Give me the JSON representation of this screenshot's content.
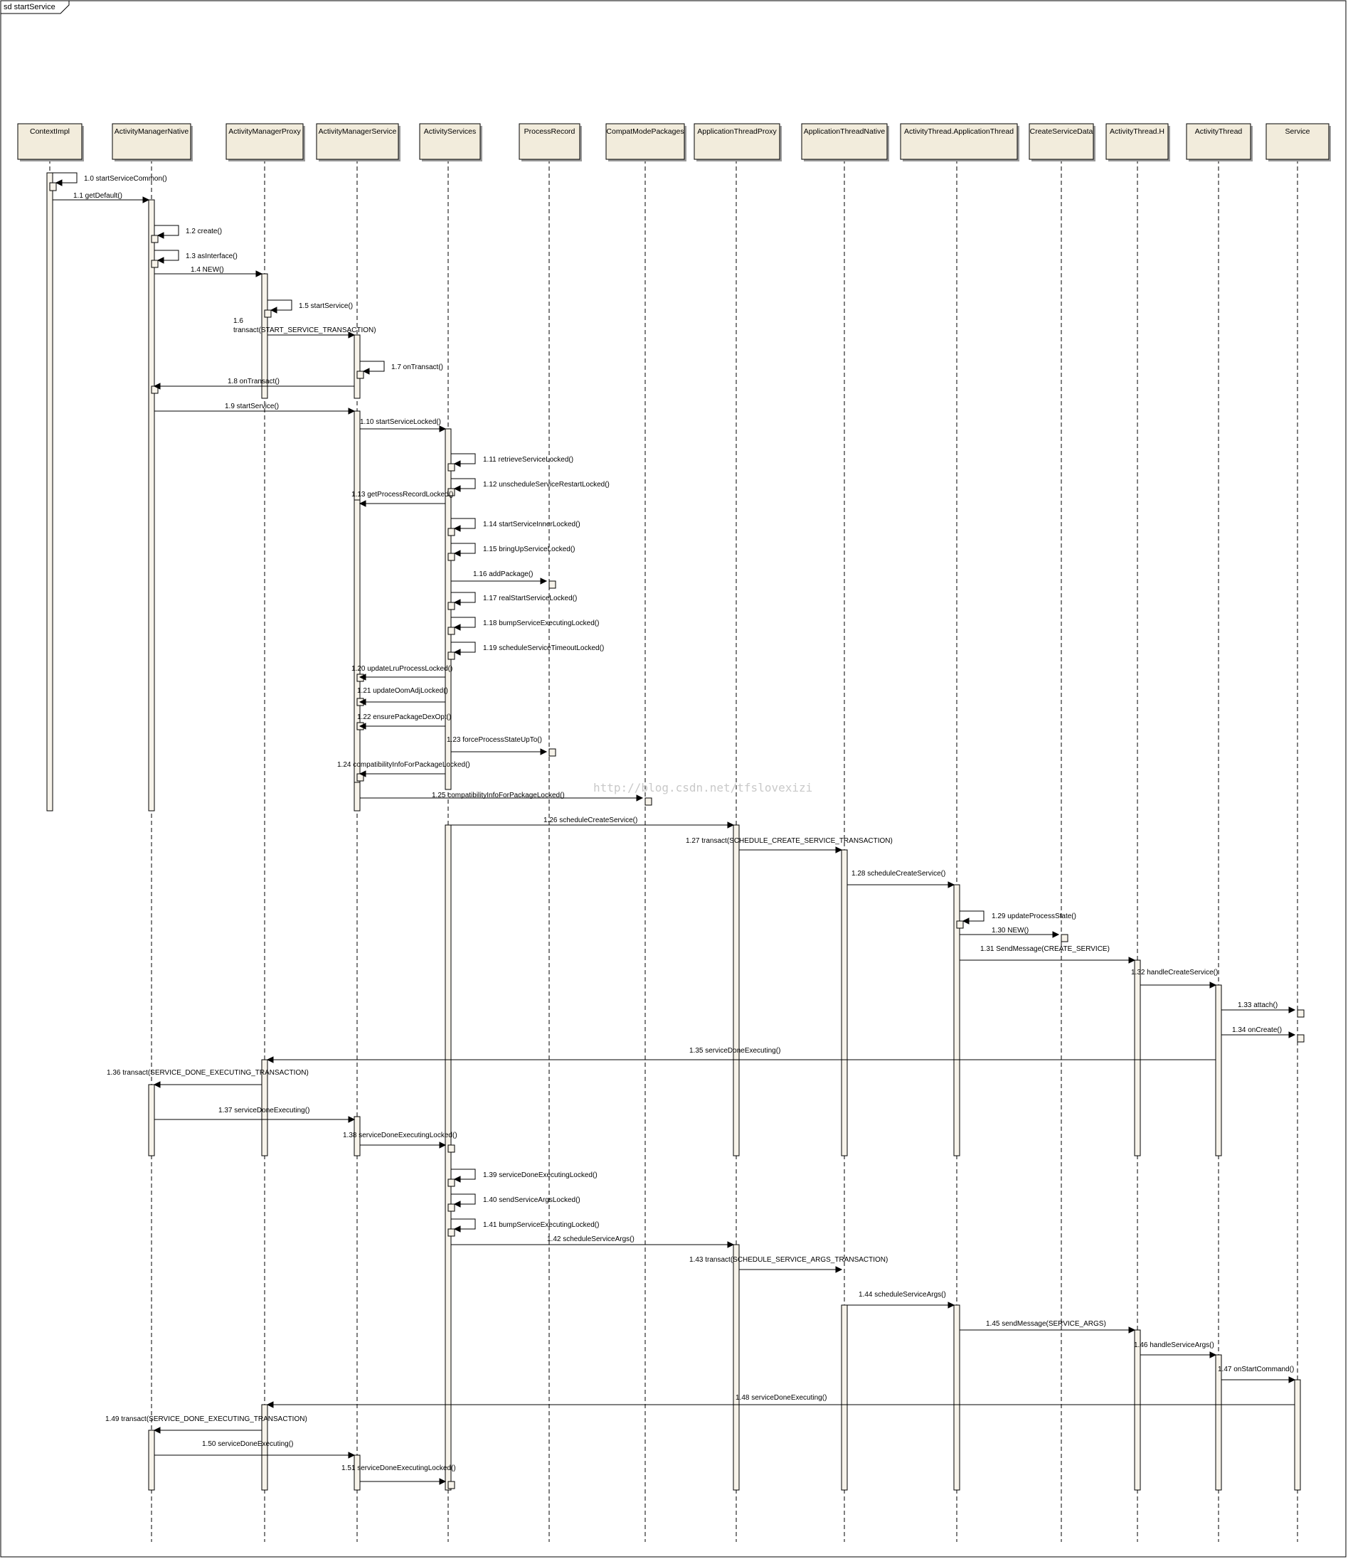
{
  "frame": {
    "title": "sd startService"
  },
  "watermark": "http://blog.csdn.net/tfslovexizi",
  "colors": {
    "head_fill": "#f2ecdc",
    "activation_fill": "#f7f3ea",
    "stroke": "#000000",
    "shadow": "#9a9a9a"
  },
  "participants": [
    {
      "id": "ContextImpl",
      "label": "ContextImpl"
    },
    {
      "id": "ActivityManagerNative",
      "label": "ActivityManagerNative"
    },
    {
      "id": "ActivityManagerProxy",
      "label": "ActivityManagerProxy"
    },
    {
      "id": "ActivityManagerService",
      "label": "ActivityManagerService"
    },
    {
      "id": "ActivityServices",
      "label": "ActivityServices"
    },
    {
      "id": "ProcessRecord",
      "label": "ProcessRecord"
    },
    {
      "id": "CompatModePackages",
      "label": "CompatModePackages"
    },
    {
      "id": "ApplicationThreadProxy",
      "label": "ApplicationThreadProxy"
    },
    {
      "id": "ApplicationThreadNative",
      "label": "ApplicationThreadNative"
    },
    {
      "id": "ActivityThreadApplicationThread",
      "label": "ActivityThread.ApplicationThread"
    },
    {
      "id": "CreateServiceData",
      "label": "CreateServiceData"
    },
    {
      "id": "ActivityThreadH",
      "label": "ActivityThread.H"
    },
    {
      "id": "ActivityThread",
      "label": "ActivityThread"
    },
    {
      "id": "Service",
      "label": "Service"
    }
  ],
  "messages": [
    {
      "label": "1.0 startServiceCommon()",
      "from": "ContextImpl",
      "to": "ContextImpl",
      "kind": "self"
    },
    {
      "label": "1.1 getDefault()",
      "from": "ContextImpl",
      "to": "ActivityManagerNative",
      "kind": "call"
    },
    {
      "label": "1.2 create()",
      "from": "ActivityManagerNative",
      "to": "ActivityManagerNative",
      "kind": "self"
    },
    {
      "label": "1.3 asInterface()",
      "from": "ActivityManagerNative",
      "to": "ActivityManagerNative",
      "kind": "self"
    },
    {
      "label": "1.4 NEW()",
      "from": "ActivityManagerNative",
      "to": "ActivityManagerProxy",
      "kind": "call"
    },
    {
      "label": "1.5 startService()",
      "from": "ActivityManagerProxy",
      "to": "ActivityManagerProxy",
      "kind": "self"
    },
    {
      "label": "1.6",
      "label2": "transact(START_SERVICE_TRANSACTION)",
      "from": "ActivityManagerProxy",
      "to": "ActivityManagerService",
      "kind": "call"
    },
    {
      "label": "1.7 onTransact()",
      "from": "ActivityManagerService",
      "to": "ActivityManagerService",
      "kind": "self"
    },
    {
      "label": "1.8 onTransact()",
      "from": "ActivityManagerService",
      "to": "ActivityManagerNative",
      "kind": "call"
    },
    {
      "label": "1.9 startService()",
      "from": "ActivityManagerNative",
      "to": "ActivityManagerService",
      "kind": "call"
    },
    {
      "label": "1.10 startServiceLocked()",
      "from": "ActivityManagerService",
      "to": "ActivityServices",
      "kind": "call"
    },
    {
      "label": "1.11 retrieveServiceLocked()",
      "from": "ActivityServices",
      "to": "ActivityServices",
      "kind": "self"
    },
    {
      "label": "1.12 unscheduleServiceRestartLocked()",
      "from": "ActivityServices",
      "to": "ActivityServices",
      "kind": "self"
    },
    {
      "label": "1.13 getProcessRecordLocked()",
      "from": "ActivityServices",
      "to": "ActivityManagerService",
      "kind": "call"
    },
    {
      "label": "1.14 startServiceInnerLocked()",
      "from": "ActivityServices",
      "to": "ActivityServices",
      "kind": "self"
    },
    {
      "label": "1.15 bringUpServiceLocked()",
      "from": "ActivityServices",
      "to": "ActivityServices",
      "kind": "self"
    },
    {
      "label": "1.16 addPackage()",
      "from": "ActivityServices",
      "to": "ProcessRecord",
      "kind": "call"
    },
    {
      "label": "1.17 realStartServiceLocked()",
      "from": "ActivityServices",
      "to": "ActivityServices",
      "kind": "self"
    },
    {
      "label": "1.18 bumpServiceExecutingLocked()",
      "from": "ActivityServices",
      "to": "ActivityServices",
      "kind": "self"
    },
    {
      "label": "1.19 scheduleServiceTimeoutLocked()",
      "from": "ActivityServices",
      "to": "ActivityServices",
      "kind": "self"
    },
    {
      "label": "1.20 updateLruProcessLocked()",
      "from": "ActivityServices",
      "to": "ActivityManagerService",
      "kind": "call"
    },
    {
      "label": "1.21 updateOomAdjLocked()",
      "from": "ActivityServices",
      "to": "ActivityManagerService",
      "kind": "call"
    },
    {
      "label": "1.22 ensurePackageDexOpt()",
      "from": "ActivityServices",
      "to": "ActivityManagerService",
      "kind": "call"
    },
    {
      "label": "1.23 forceProcessStateUpTo()",
      "from": "ActivityServices",
      "to": "ProcessRecord",
      "kind": "call"
    },
    {
      "label": "1.24 compatibilityInfoForPackageLocked()",
      "from": "ActivityServices",
      "to": "ActivityManagerService",
      "kind": "call"
    },
    {
      "label": "1.25 compatibilityInfoForPackageLocked()",
      "from": "ActivityManagerService",
      "to": "CompatModePackages",
      "kind": "call"
    },
    {
      "label": "1.26 scheduleCreateService()",
      "from": "ActivityServices",
      "to": "ApplicationThreadProxy",
      "kind": "call"
    },
    {
      "label": "1.27 transact(SCHEDULE_CREATE_SERVICE_TRANSACTION)",
      "from": "ApplicationThreadProxy",
      "to": "ApplicationThreadNative",
      "kind": "call"
    },
    {
      "label": "1.28 scheduleCreateService()",
      "from": "ApplicationThreadNative",
      "to": "ActivityThreadApplicationThread",
      "kind": "call"
    },
    {
      "label": "1.29 updateProcessState()",
      "from": "ActivityThreadApplicationThread",
      "to": "ActivityThreadApplicationThread",
      "kind": "self"
    },
    {
      "label": "1.30 NEW()",
      "from": "ActivityThreadApplicationThread",
      "to": "CreateServiceData",
      "kind": "call"
    },
    {
      "label": "1.31 SendMessage(CREATE_SERVICE)",
      "from": "ActivityThreadApplicationThread",
      "to": "ActivityThreadH",
      "kind": "call"
    },
    {
      "label": "1.32 handleCreateService()",
      "from": "ActivityThreadH",
      "to": "ActivityThread",
      "kind": "call"
    },
    {
      "label": "1.33 attach()",
      "from": "ActivityThread",
      "to": "Service",
      "kind": "call"
    },
    {
      "label": "1.34 onCreate()",
      "from": "ActivityThread",
      "to": "Service",
      "kind": "call"
    },
    {
      "label": "1.35 serviceDoneExecuting()",
      "from": "ActivityThread",
      "to": "ActivityManagerProxy",
      "kind": "call"
    },
    {
      "label": "1.36 transact(SERVICE_DONE_EXECUTING_TRANSACTION)",
      "from": "ActivityManagerProxy",
      "to": "ActivityManagerNative",
      "kind": "call"
    },
    {
      "label": "1.37 serviceDoneExecuting()",
      "from": "ActivityManagerNative",
      "to": "ActivityManagerService",
      "kind": "call"
    },
    {
      "label": "1.38 serviceDoneExecutingLocked()",
      "from": "ActivityManagerService",
      "to": "ActivityServices",
      "kind": "call"
    },
    {
      "label": "1.39 serviceDoneExecutingLocked()",
      "from": "ActivityServices",
      "to": "ActivityServices",
      "kind": "self"
    },
    {
      "label": "1.40 sendServiceArgsLocked()",
      "from": "ActivityServices",
      "to": "ActivityServices",
      "kind": "self"
    },
    {
      "label": "1.41 bumpServiceExecutingLocked()",
      "from": "ActivityServices",
      "to": "ActivityServices",
      "kind": "self"
    },
    {
      "label": "1.42 scheduleServiceArgs()",
      "from": "ActivityServices",
      "to": "ApplicationThreadProxy",
      "kind": "call"
    },
    {
      "label": "1.43 transact(SCHEDULE_SERVICE_ARGS_TRANSACTION)",
      "from": "ApplicationThreadProxy",
      "to": "ApplicationThreadNative",
      "kind": "call"
    },
    {
      "label": "1.44 scheduleServiceArgs()",
      "from": "ApplicationThreadNative",
      "to": "ActivityThreadApplicationThread",
      "kind": "call"
    },
    {
      "label": "1.45 sendMessage(SERVICE_ARGS)",
      "from": "ActivityThreadApplicationThread",
      "to": "ActivityThreadH",
      "kind": "call"
    },
    {
      "label": "1.46 handleServiceArgs()",
      "from": "ActivityThreadH",
      "to": "ActivityThread",
      "kind": "call"
    },
    {
      "label": "1.47 onStartCommand()",
      "from": "ActivityThread",
      "to": "Service",
      "kind": "call"
    },
    {
      "label": "1.48 serviceDoneExecuting()",
      "from": "Service",
      "to": "ActivityManagerProxy",
      "kind": "call"
    },
    {
      "label": "1.49 transact(SERVICE_DONE_EXECUTING_TRANSACTION)",
      "from": "ActivityManagerProxy",
      "to": "ActivityManagerNative",
      "kind": "call"
    },
    {
      "label": "1.50 serviceDoneExecuting()",
      "from": "ActivityManagerNative",
      "to": "ActivityManagerService",
      "kind": "call"
    },
    {
      "label": "1.51 serviceDoneExecutingLocked()",
      "from": "ActivityManagerService",
      "to": "ActivityServices",
      "kind": "call"
    }
  ]
}
